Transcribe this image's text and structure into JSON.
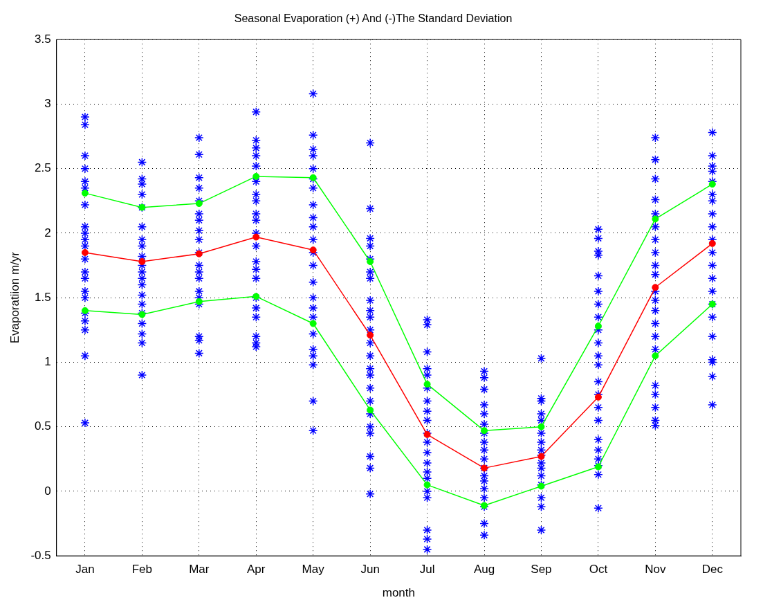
{
  "chart_data": {
    "type": "line",
    "title": "Seasonal Evaporation (+) And (-)The Standard Deviation",
    "xlabel": "month",
    "ylabel": "Evaporatiion m/yr",
    "categories": [
      "Jan",
      "Feb",
      "Mar",
      "Apr",
      "May",
      "Jun",
      "Jul",
      "Aug",
      "Sep",
      "Oct",
      "Nov",
      "Dec"
    ],
    "ylim": [
      -0.5,
      3.5
    ],
    "yticks": [
      -0.5,
      0,
      0.5,
      1,
      1.5,
      2,
      2.5,
      3,
      3.5
    ],
    "grid": true,
    "line_style": "solid",
    "series": [
      {
        "type": "scatter",
        "marker": "cross",
        "color": "#0000ff",
        "x": [
          "Jan",
          "Jan",
          "Jan",
          "Jan",
          "Jan",
          "Jan",
          "Jan",
          "Jan",
          "Jan",
          "Jan",
          "Jan",
          "Jan",
          "Jan",
          "Jan",
          "Jan",
          "Jan",
          "Jan",
          "Jan",
          "Jan",
          "Jan",
          "Jan",
          "Feb",
          "Feb",
          "Feb",
          "Feb",
          "Feb",
          "Feb",
          "Feb",
          "Feb",
          "Feb",
          "Feb",
          "Feb",
          "Feb",
          "Feb",
          "Feb",
          "Feb",
          "Feb",
          "Feb",
          "Feb",
          "Feb",
          "Feb",
          "Mar",
          "Mar",
          "Mar",
          "Mar",
          "Mar",
          "Mar",
          "Mar",
          "Mar",
          "Mar",
          "Mar",
          "Mar",
          "Mar",
          "Mar",
          "Mar",
          "Mar",
          "Mar",
          "Mar",
          "Mar",
          "Mar",
          "Apr",
          "Apr",
          "Apr",
          "Apr",
          "Apr",
          "Apr",
          "Apr",
          "Apr",
          "Apr",
          "Apr",
          "Apr",
          "Apr",
          "Apr",
          "Apr",
          "Apr",
          "Apr",
          "Apr",
          "Apr",
          "Apr",
          "Apr",
          "Apr",
          "May",
          "May",
          "May",
          "May",
          "May",
          "May",
          "May",
          "May",
          "May",
          "May",
          "May",
          "May",
          "May",
          "May",
          "May",
          "May",
          "May",
          "May",
          "May",
          "May",
          "May",
          "May",
          "May",
          "Jun",
          "Jun",
          "Jun",
          "Jun",
          "Jun",
          "Jun",
          "Jun",
          "Jun",
          "Jun",
          "Jun",
          "Jun",
          "Jun",
          "Jun",
          "Jun",
          "Jun",
          "Jun",
          "Jun",
          "Jun",
          "Jun",
          "Jun",
          "Jun",
          "Jun",
          "Jun",
          "Jul",
          "Jul",
          "Jul",
          "Jul",
          "Jul",
          "Jul",
          "Jul",
          "Jul",
          "Jul",
          "Jul",
          "Jul",
          "Jul",
          "Jul",
          "Jul",
          "Jul",
          "Jul",
          "Jul",
          "Jul",
          "Jul",
          "Jul",
          "Aug",
          "Aug",
          "Aug",
          "Aug",
          "Aug",
          "Aug",
          "Aug",
          "Aug",
          "Aug",
          "Aug",
          "Aug",
          "Aug",
          "Aug",
          "Aug",
          "Aug",
          "Aug",
          "Aug",
          "Aug",
          "Sep",
          "Sep",
          "Sep",
          "Sep",
          "Sep",
          "Sep",
          "Sep",
          "Sep",
          "Sep",
          "Sep",
          "Sep",
          "Sep",
          "Sep",
          "Sep",
          "Sep",
          "Sep",
          "Oct",
          "Oct",
          "Oct",
          "Oct",
          "Oct",
          "Oct",
          "Oct",
          "Oct",
          "Oct",
          "Oct",
          "Oct",
          "Oct",
          "Oct",
          "Oct",
          "Oct",
          "Oct",
          "Oct",
          "Oct",
          "Oct",
          "Oct",
          "Oct",
          "Oct",
          "Nov",
          "Nov",
          "Nov",
          "Nov",
          "Nov",
          "Nov",
          "Nov",
          "Nov",
          "Nov",
          "Nov",
          "Nov",
          "Nov",
          "Nov",
          "Nov",
          "Nov",
          "Nov",
          "Nov",
          "Nov",
          "Nov",
          "Nov",
          "Nov",
          "Dec",
          "Dec",
          "Dec",
          "Dec",
          "Dec",
          "Dec",
          "Dec",
          "Dec",
          "Dec",
          "Dec",
          "Dec",
          "Dec",
          "Dec",
          "Dec",
          "Dec",
          "Dec",
          "Dec",
          "Dec",
          "Dec",
          "Dec",
          "Dec"
        ],
        "values": [
          2.9,
          2.84,
          2.6,
          2.5,
          2.4,
          2.35,
          2.22,
          2.05,
          2.0,
          1.95,
          1.9,
          1.8,
          1.7,
          1.65,
          1.55,
          1.5,
          1.38,
          1.32,
          1.25,
          1.05,
          0.53,
          2.55,
          2.42,
          2.38,
          2.3,
          2.2,
          2.05,
          1.95,
          1.9,
          1.82,
          1.75,
          1.7,
          1.65,
          1.6,
          1.52,
          1.45,
          1.38,
          1.3,
          1.22,
          1.15,
          0.9,
          2.74,
          2.61,
          2.43,
          2.35,
          2.25,
          2.15,
          2.1,
          2.02,
          1.95,
          1.85,
          1.75,
          1.7,
          1.65,
          1.55,
          1.5,
          1.45,
          1.2,
          1.17,
          1.07,
          2.94,
          2.72,
          2.66,
          2.6,
          2.52,
          2.4,
          2.3,
          2.25,
          2.15,
          2.1,
          2.0,
          1.9,
          1.78,
          1.72,
          1.65,
          1.5,
          1.42,
          1.35,
          1.2,
          1.15,
          1.12,
          3.08,
          2.76,
          2.65,
          2.6,
          2.5,
          2.42,
          2.35,
          2.22,
          2.12,
          2.05,
          1.95,
          1.85,
          1.75,
          1.62,
          1.5,
          1.42,
          1.35,
          1.22,
          1.1,
          1.05,
          0.98,
          0.7,
          0.47,
          2.7,
          2.19,
          1.96,
          1.9,
          1.8,
          1.7,
          1.65,
          1.48,
          1.4,
          1.35,
          1.25,
          1.15,
          1.05,
          0.95,
          0.9,
          0.8,
          0.7,
          0.6,
          0.5,
          0.45,
          0.27,
          0.18,
          -0.02,
          1.33,
          1.29,
          1.08,
          0.95,
          0.9,
          0.8,
          0.7,
          0.62,
          0.55,
          0.45,
          0.38,
          0.3,
          0.22,
          0.15,
          0.1,
          0.0,
          -0.05,
          -0.3,
          -0.37,
          -0.45,
          0.93,
          0.88,
          0.79,
          0.67,
          0.6,
          0.52,
          0.45,
          0.38,
          0.32,
          0.25,
          0.18,
          0.12,
          0.08,
          0.02,
          -0.05,
          -0.12,
          -0.25,
          -0.34,
          1.03,
          0.72,
          0.7,
          0.6,
          0.55,
          0.45,
          0.38,
          0.32,
          0.28,
          0.22,
          0.18,
          0.12,
          0.05,
          -0.05,
          -0.12,
          -0.3,
          2.03,
          1.96,
          1.86,
          1.83,
          1.67,
          1.55,
          1.45,
          1.35,
          1.25,
          1.15,
          1.05,
          0.98,
          0.85,
          0.75,
          0.65,
          0.55,
          0.4,
          0.32,
          0.25,
          0.2,
          0.13,
          -0.13,
          2.74,
          2.57,
          2.42,
          2.26,
          2.15,
          2.05,
          1.95,
          1.85,
          1.75,
          1.68,
          1.55,
          1.48,
          1.4,
          1.3,
          1.2,
          1.1,
          0.82,
          0.75,
          0.65,
          0.55,
          0.51,
          2.78,
          2.6,
          2.52,
          2.48,
          2.4,
          2.3,
          2.25,
          2.15,
          2.05,
          1.95,
          1.85,
          1.75,
          1.65,
          1.55,
          1.45,
          1.35,
          1.2,
          1.02,
          1.0,
          0.89,
          0.67
        ]
      },
      {
        "marker": "circle",
        "color": "#ff0000",
        "values": [
          1.85,
          1.78,
          1.84,
          1.97,
          1.87,
          1.21,
          0.44,
          0.18,
          0.27,
          0.73,
          1.58,
          1.92
        ]
      },
      {
        "marker": "circle",
        "color": "#00ff00",
        "values": [
          2.31,
          2.2,
          2.23,
          2.44,
          2.43,
          1.78,
          0.83,
          0.47,
          0.5,
          1.28,
          2.11,
          2.38
        ]
      },
      {
        "marker": "circle",
        "color": "#00ff00",
        "values": [
          1.4,
          1.37,
          1.47,
          1.51,
          1.3,
          0.63,
          0.05,
          -0.11,
          0.04,
          0.19,
          1.05,
          1.45
        ]
      }
    ]
  }
}
